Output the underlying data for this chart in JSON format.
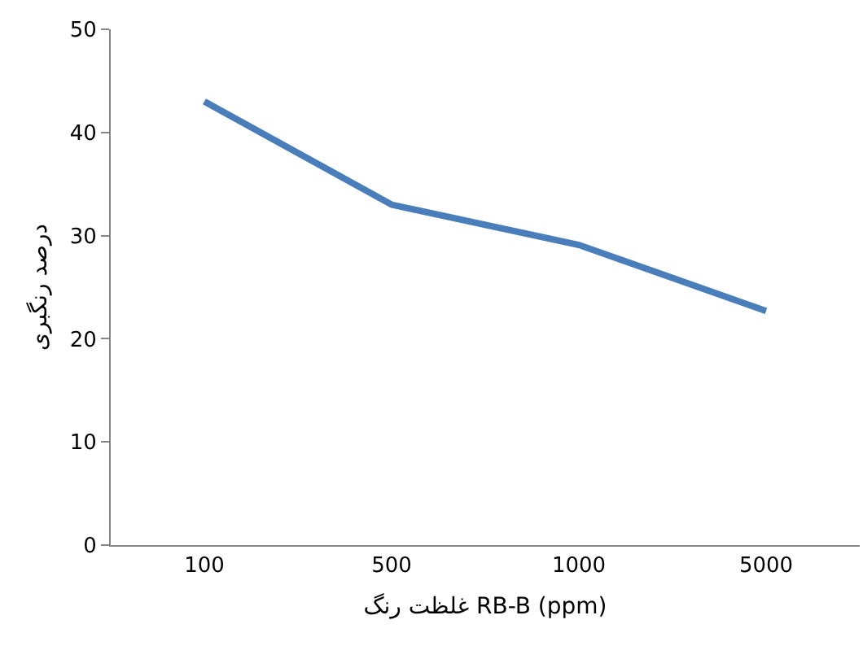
{
  "chart_data": {
    "type": "line",
    "xlabel": "غلظت رنگ RB-B (ppm)",
    "ylabel": "درصد رنگبری",
    "categories": [
      "100",
      "500",
      "1000",
      "5000"
    ],
    "series": [
      {
        "color": "#4a7ebb",
        "values": [
          43,
          33,
          29.1,
          22.7
        ]
      }
    ],
    "ylim": [
      0,
      50
    ],
    "yticks": [
      0,
      10,
      20,
      30,
      40,
      50
    ],
    "marker": "none",
    "line_style": "solid"
  }
}
